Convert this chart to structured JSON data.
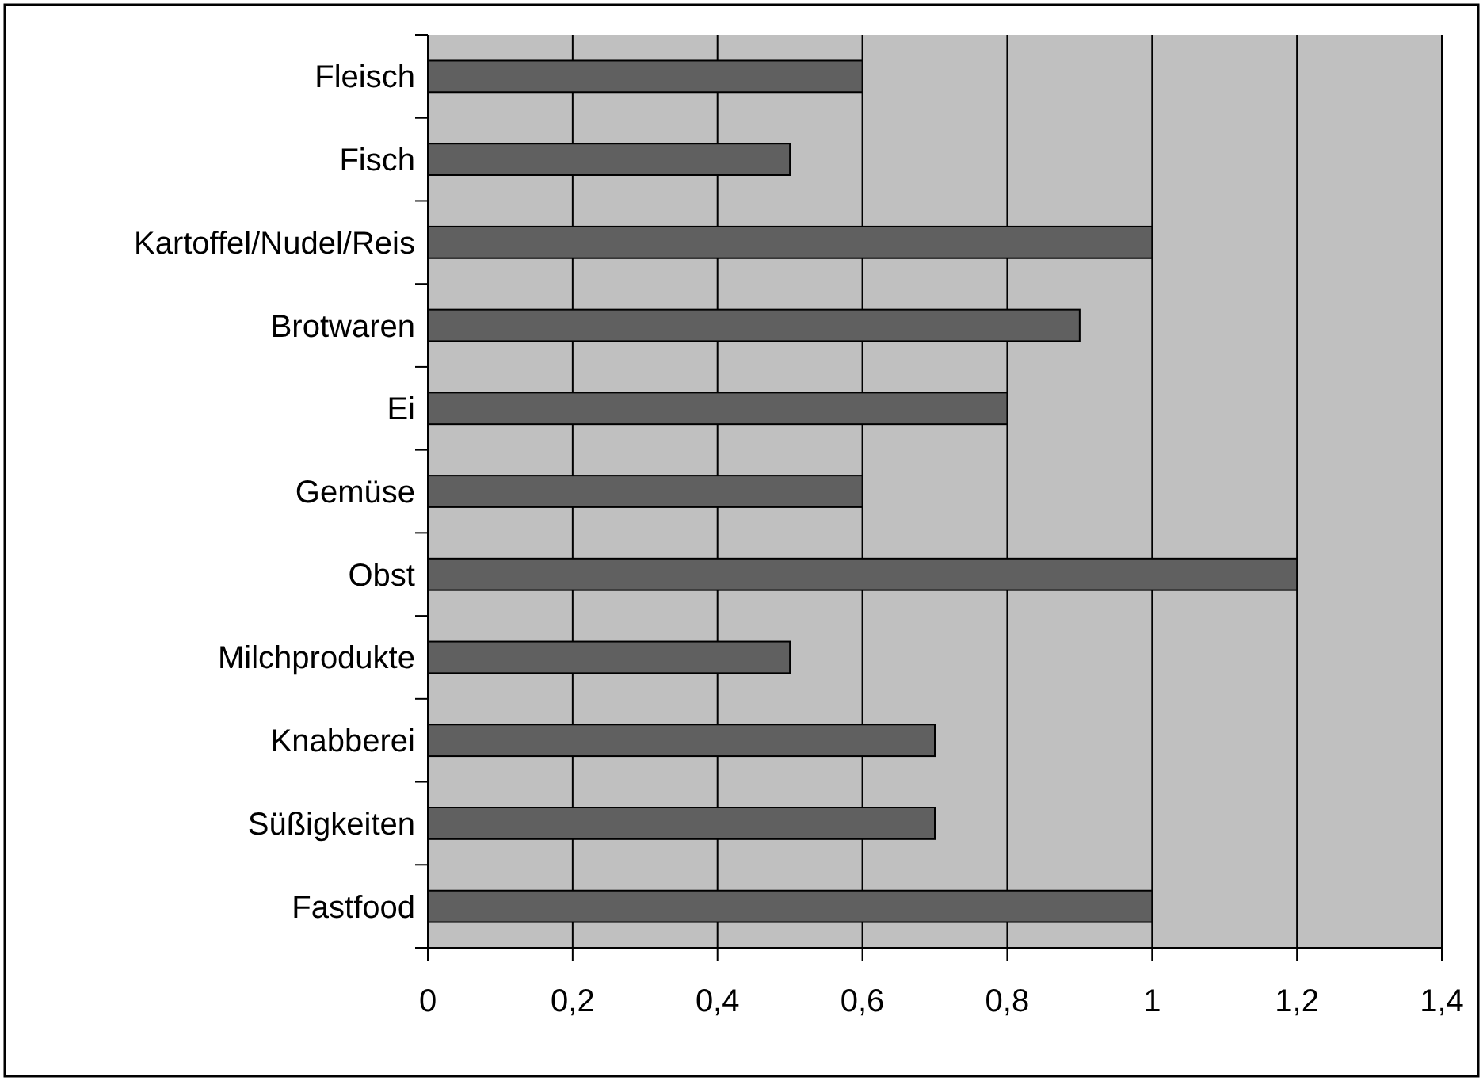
{
  "chart_data": {
    "type": "bar",
    "orientation": "horizontal",
    "categories": [
      "Fleisch",
      "Fisch",
      "Kartoffel/Nudel/Reis",
      "Brotwaren",
      "Ei",
      "Gemüse",
      "Obst",
      "Milchprodukte",
      "Knabberei",
      "Süßigkeiten",
      "Fastfood"
    ],
    "values": [
      0.6,
      0.5,
      1,
      0.9,
      0.8,
      0.6,
      1.2,
      0.5,
      0.7,
      0.7,
      1
    ],
    "color": "#606060",
    "xlim": [
      0,
      1.4
    ],
    "xticks": [
      0,
      {
        "value": 0.2,
        "label": "0,2"
      },
      {
        "value": 0.4,
        "label": "0,4"
      },
      {
        "value": 0.6,
        "label": "0,6"
      },
      {
        "value": 0.8,
        "label": "0,8"
      },
      1,
      {
        "value": 1.2,
        "label": "1,2"
      },
      {
        "value": 1.4,
        "label": "1,4"
      }
    ],
    "grid": "x"
  }
}
